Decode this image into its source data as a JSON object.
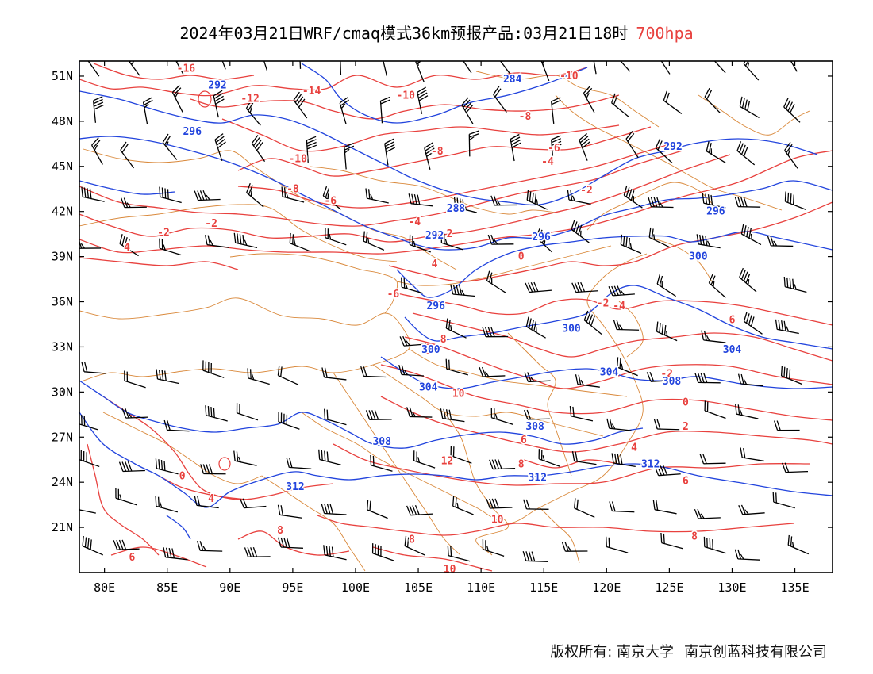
{
  "title": {
    "main": "2024年03月21日WRF/cmaq模式36km预报产品:03月21日18时",
    "level": "700hpa"
  },
  "axes": {
    "lat_labels": [
      "51N",
      "48N",
      "45N",
      "42N",
      "39N",
      "36N",
      "33N",
      "30N",
      "27N",
      "24N",
      "21N"
    ],
    "lat_values": [
      51,
      48,
      45,
      42,
      39,
      36,
      33,
      30,
      27,
      24,
      21
    ],
    "lon_labels": [
      "80E",
      "85E",
      "90E",
      "95E",
      "100E",
      "105E",
      "110E",
      "115E",
      "120E",
      "125E",
      "130E",
      "135E"
    ],
    "lon_values": [
      80,
      85,
      90,
      95,
      100,
      105,
      110,
      115,
      120,
      125,
      130,
      135
    ],
    "lon_range": [
      78,
      138
    ],
    "lat_range": [
      18,
      52
    ]
  },
  "colors": {
    "temperature": "#e8413e",
    "height": "#2244dd",
    "boundaries": "#d9883a",
    "wind_barbs": "#000000"
  },
  "temperature_labels": [
    {
      "text": "-16",
      "lon": 86.5,
      "lat": 51.5
    },
    {
      "text": "-12",
      "lon": 91.6,
      "lat": 49.5
    },
    {
      "text": "-14",
      "lon": 96.5,
      "lat": 50.0
    },
    {
      "text": "-10",
      "lon": 104.0,
      "lat": 49.7
    },
    {
      "text": "-10",
      "lon": 117.0,
      "lat": 51.0
    },
    {
      "text": "-8",
      "lon": 113.5,
      "lat": 48.3
    },
    {
      "text": "-8",
      "lon": 106.5,
      "lat": 46.0
    },
    {
      "text": "-6",
      "lon": 115.8,
      "lat": 46.2
    },
    {
      "text": "-4",
      "lon": 115.3,
      "lat": 45.3
    },
    {
      "text": "-10",
      "lon": 95.4,
      "lat": 45.5
    },
    {
      "text": "-8",
      "lon": 95.0,
      "lat": 43.5
    },
    {
      "text": "-6",
      "lon": 98.0,
      "lat": 42.7
    },
    {
      "text": "-2",
      "lon": 118.4,
      "lat": 43.4
    },
    {
      "text": "-4",
      "lon": 104.7,
      "lat": 41.3
    },
    {
      "text": "-2",
      "lon": 88.5,
      "lat": 41.2
    },
    {
      "text": "-2",
      "lon": 84.7,
      "lat": 40.6
    },
    {
      "text": "2",
      "lon": 107.5,
      "lat": 40.5
    },
    {
      "text": "4",
      "lon": 81.8,
      "lat": 39.6
    },
    {
      "text": "0",
      "lon": 113.2,
      "lat": 39.0
    },
    {
      "text": "4",
      "lon": 106.3,
      "lat": 38.5
    },
    {
      "text": "-6",
      "lon": 103.0,
      "lat": 36.5
    },
    {
      "text": "-2",
      "lon": 119.7,
      "lat": 35.9
    },
    {
      "text": "-4",
      "lon": 121.0,
      "lat": 35.7
    },
    {
      "text": "6",
      "lon": 130.0,
      "lat": 34.8
    },
    {
      "text": "8",
      "lon": 107.0,
      "lat": 33.5
    },
    {
      "text": "-2",
      "lon": 124.8,
      "lat": 31.2
    },
    {
      "text": "10",
      "lon": 108.2,
      "lat": 29.9
    },
    {
      "text": "0",
      "lon": 126.3,
      "lat": 29.3
    },
    {
      "text": "2",
      "lon": 126.3,
      "lat": 27.7
    },
    {
      "text": "6",
      "lon": 113.4,
      "lat": 26.8
    },
    {
      "text": "4",
      "lon": 122.2,
      "lat": 26.3
    },
    {
      "text": "12",
      "lon": 107.3,
      "lat": 25.4
    },
    {
      "text": "8",
      "lon": 113.2,
      "lat": 25.2
    },
    {
      "text": "0",
      "lon": 86.2,
      "lat": 24.4
    },
    {
      "text": "6",
      "lon": 126.3,
      "lat": 24.1
    },
    {
      "text": "4",
      "lon": 88.5,
      "lat": 22.9
    },
    {
      "text": "10",
      "lon": 111.3,
      "lat": 21.5
    },
    {
      "text": "8",
      "lon": 94.0,
      "lat": 20.8
    },
    {
      "text": "8",
      "lon": 127.0,
      "lat": 20.4
    },
    {
      "text": "8",
      "lon": 104.5,
      "lat": 20.2
    },
    {
      "text": "6",
      "lon": 82.2,
      "lat": 19.0
    },
    {
      "text": "10",
      "lon": 107.5,
      "lat": 18.2
    }
  ],
  "height_labels": [
    {
      "text": "292",
      "lon": 89.0,
      "lat": 50.4
    },
    {
      "text": "284",
      "lon": 112.5,
      "lat": 50.8
    },
    {
      "text": "296",
      "lon": 87.0,
      "lat": 47.3
    },
    {
      "text": "292",
      "lon": 125.3,
      "lat": 46.3
    },
    {
      "text": "288",
      "lon": 108.0,
      "lat": 42.2
    },
    {
      "text": "296",
      "lon": 128.7,
      "lat": 42.0
    },
    {
      "text": "292",
      "lon": 106.3,
      "lat": 40.4
    },
    {
      "text": "296",
      "lon": 114.8,
      "lat": 40.3
    },
    {
      "text": "300",
      "lon": 127.3,
      "lat": 39.0
    },
    {
      "text": "296",
      "lon": 106.4,
      "lat": 35.7
    },
    {
      "text": "300",
      "lon": 117.2,
      "lat": 34.2
    },
    {
      "text": "300",
      "lon": 106.0,
      "lat": 32.8
    },
    {
      "text": "304",
      "lon": 130.0,
      "lat": 32.8
    },
    {
      "text": "304",
      "lon": 120.2,
      "lat": 31.3
    },
    {
      "text": "308",
      "lon": 125.2,
      "lat": 30.7
    },
    {
      "text": "304",
      "lon": 105.8,
      "lat": 30.3
    },
    {
      "text": "308",
      "lon": 114.3,
      "lat": 27.7
    },
    {
      "text": "308",
      "lon": 102.1,
      "lat": 26.7
    },
    {
      "text": "312",
      "lon": 123.5,
      "lat": 25.2
    },
    {
      "text": "312",
      "lon": 114.5,
      "lat": 24.3
    },
    {
      "text": "312",
      "lon": 95.2,
      "lat": 23.7
    }
  ],
  "footer": {
    "left": "版权所有: 南京大学",
    "right": "南京创蓝科技有限公司"
  }
}
